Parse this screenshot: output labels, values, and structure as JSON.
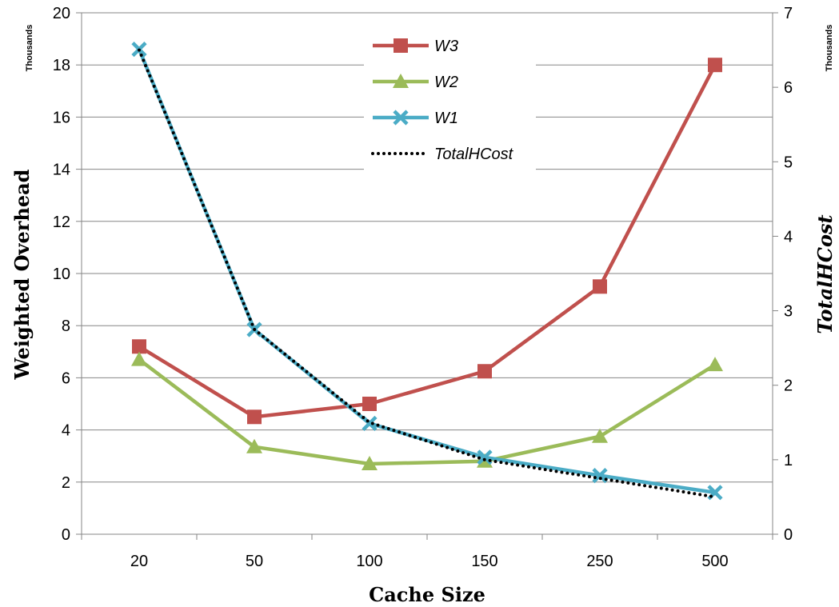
{
  "chart_data": {
    "type": "line",
    "categories": [
      "20",
      "50",
      "100",
      "150",
      "250",
      "500"
    ],
    "xlabel": "Cache Size",
    "ylabel_left": "Weighted Overhead",
    "ylabel_right": "TotalHCost",
    "left_units": "Thousands",
    "right_units": "Thousands",
    "ylim_left": [
      0,
      20
    ],
    "ylim_right": [
      0,
      7
    ],
    "yticks_left": [
      "0",
      "2",
      "4",
      "6",
      "8",
      "10",
      "12",
      "14",
      "16",
      "18",
      "20"
    ],
    "yticks_right": [
      "0",
      "1",
      "2",
      "3",
      "4",
      "5",
      "6",
      "7"
    ],
    "grid": "horizontal",
    "legend_position": "top-center",
    "series": [
      {
        "name": "W3",
        "axis": "left",
        "values": [
          7.2,
          4.5,
          5.0,
          6.25,
          9.5,
          18.0
        ],
        "color": "#c0504d",
        "marker": "square",
        "dash": "solid"
      },
      {
        "name": "W2",
        "axis": "left",
        "values": [
          6.7,
          3.35,
          2.7,
          2.8,
          3.75,
          6.5
        ],
        "color": "#9bbb59",
        "marker": "triangle",
        "dash": "solid"
      },
      {
        "name": "W1",
        "axis": "left",
        "values": [
          18.6,
          7.85,
          4.25,
          2.95,
          2.25,
          1.6
        ],
        "color": "#4bacc6",
        "marker": "x",
        "dash": "solid"
      },
      {
        "name": "TotalHCost",
        "axis": "right",
        "values": [
          6.5,
          2.75,
          1.5,
          1.0,
          0.75,
          0.5
        ],
        "color": "#000000",
        "marker": "none",
        "dash": "dotted"
      }
    ]
  }
}
